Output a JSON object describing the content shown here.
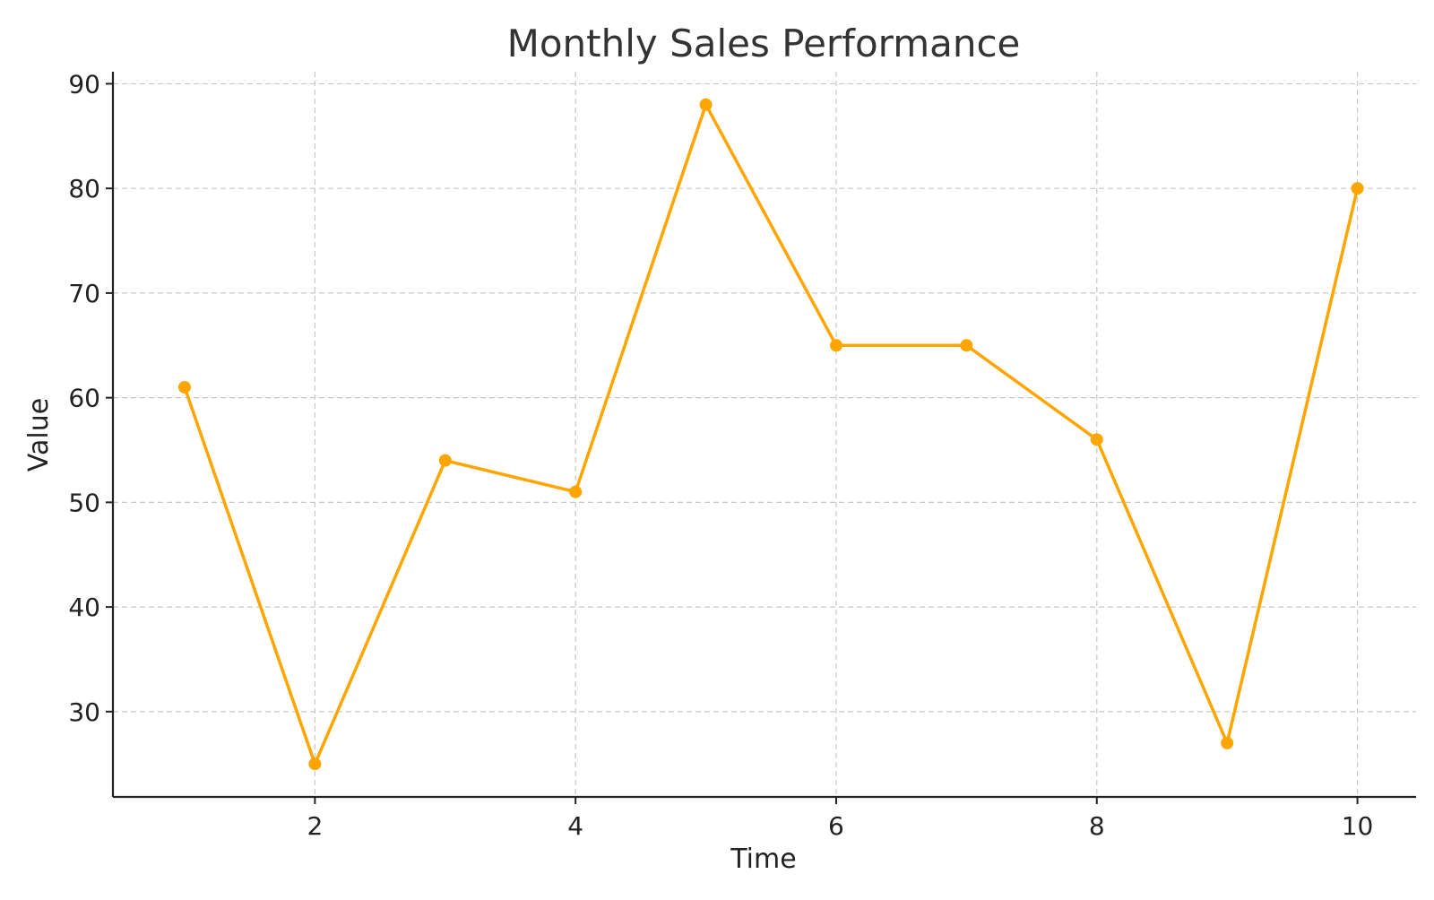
{
  "chart_data": {
    "type": "line",
    "title": "Monthly Sales Performance",
    "xlabel": "Time",
    "ylabel": "Value",
    "x": [
      1,
      2,
      3,
      4,
      5,
      6,
      7,
      8,
      9,
      10
    ],
    "series": [
      {
        "values": [
          61,
          25,
          54,
          51,
          88,
          65,
          65,
          56,
          27,
          80
        ]
      }
    ],
    "xlim": [
      0.45,
      10.45
    ],
    "ylim": [
      21.85,
      91.15
    ],
    "xticks": [
      2,
      4,
      6,
      8,
      10
    ],
    "yticks": [
      30,
      40,
      50,
      60,
      70,
      80,
      90
    ],
    "grid": true,
    "markers": true,
    "line_color": "#FFA500"
  }
}
